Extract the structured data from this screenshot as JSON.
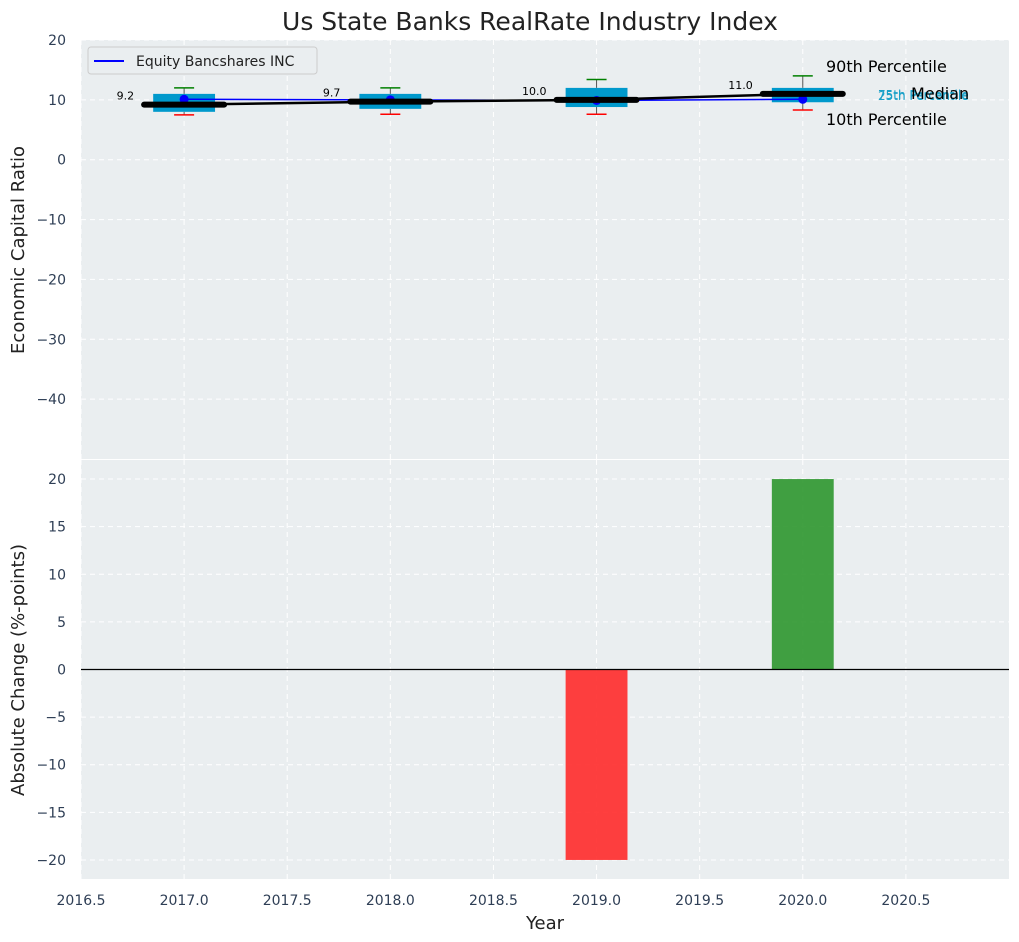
{
  "chart_data": [
    {
      "type": "box",
      "title": "Us State Banks RealRate Industry Index",
      "xlabel": "",
      "ylabel": "Economic Capital Ratio",
      "xlim": [
        2016.5,
        2021.0
      ],
      "ylim": [
        -50,
        20
      ],
      "yticks": [
        20,
        10,
        0,
        -10,
        -20,
        -30,
        -40
      ],
      "grid": true,
      "legend": {
        "placement": "top-left",
        "entries": [
          "Equity Bancshares INC"
        ]
      },
      "boxes": [
        {
          "x": 2017,
          "p10": 7.5,
          "p25": 8.0,
          "median": 9.2,
          "p75": 11.0,
          "p90": 12.0
        },
        {
          "x": 2018,
          "p10": 7.6,
          "p25": 8.5,
          "median": 9.7,
          "p75": 11.0,
          "p90": 12.0
        },
        {
          "x": 2019,
          "p10": 7.6,
          "p25": 8.8,
          "median": 10.0,
          "p75": 12.0,
          "p90": 13.4
        },
        {
          "x": 2020,
          "p10": 8.3,
          "p25": 9.6,
          "median": 11.0,
          "p75": 12.0,
          "p90": 14.0
        }
      ],
      "series": [
        {
          "name": "Equity Bancshares INC",
          "color": "#0000ff",
          "x": [
            2017,
            2018,
            2019,
            2020
          ],
          "values": [
            10.1,
            10.0,
            9.9,
            10.1
          ]
        }
      ],
      "median_labels": [
        "9.2",
        "9.7",
        "10.0",
        "11.0"
      ],
      "annotations": {
        "p90": "90th Percentile",
        "median": "Median",
        "p10": "10th Percentile",
        "p75": "75th Percentile",
        "p25": "25th Percentile"
      },
      "colors": {
        "box": "#0099cc",
        "median": "#000000",
        "whisker_high": "#008000",
        "whisker_low": "#ff0000",
        "company": "#0000ff"
      }
    },
    {
      "type": "bar",
      "title": "",
      "xlabel": "Year",
      "ylabel": "Absolute Change (%-points)",
      "xlim": [
        2016.5,
        2021.0
      ],
      "ylim": [
        -22,
        22
      ],
      "xticks": [
        "2016.5",
        "2017.0",
        "2017.5",
        "2018.0",
        "2018.5",
        "2019.0",
        "2019.5",
        "2020.0",
        "2020.5"
      ],
      "xtick_values": [
        2016.5,
        2017.0,
        2017.5,
        2018.0,
        2018.5,
        2019.0,
        2019.5,
        2020.0,
        2020.5
      ],
      "yticks": [
        20,
        15,
        10,
        5,
        0,
        -5,
        -10,
        -15,
        -20
      ],
      "x": [
        2019,
        2020
      ],
      "values": [
        -20,
        20
      ],
      "colors": {
        "positive": "#2e962e",
        "negative": "#ff2a2a"
      },
      "grid": true
    }
  ]
}
